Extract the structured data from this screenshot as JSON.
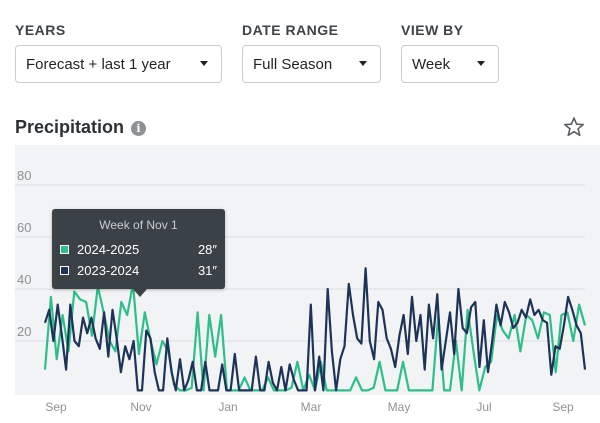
{
  "filters": {
    "years": {
      "label": "YEARS",
      "value": "Forecast + last 1 year"
    },
    "date_range": {
      "label": "DATE RANGE",
      "value": "Full Season"
    },
    "view_by": {
      "label": "VIEW BY",
      "value": "Week"
    }
  },
  "section": {
    "title": "Precipitation",
    "info_icon": "info-icon",
    "favorite_icon": "star-outline-icon"
  },
  "tooltip": {
    "title": "Week of Nov 1",
    "rows": [
      {
        "name": "2024-2025",
        "value": "28″",
        "color": "#2dbe8b"
      },
      {
        "name": "2023-2024",
        "value": "31″",
        "color": "#1e3358"
      }
    ]
  },
  "chart_data": {
    "type": "line",
    "x_ticks": [
      "Sep",
      "Nov",
      "Jan",
      "Mar",
      "May",
      "Jul",
      "Sep"
    ],
    "y_ticks": [
      20,
      40,
      60,
      80
    ],
    "ylim": [
      0,
      85
    ],
    "grid": true,
    "series": [
      {
        "name": "2024-2025",
        "color": "#2dbe8b",
        "values": [
          9,
          37,
          13,
          30,
          16,
          39,
          36,
          35,
          22,
          41,
          31,
          20,
          16,
          35,
          30,
          42,
          15,
          31,
          20,
          11,
          20,
          16,
          3,
          1,
          1,
          2,
          31,
          1,
          30,
          14,
          30,
          1,
          1,
          1,
          6,
          1,
          1,
          1,
          6,
          1,
          1,
          1,
          2,
          12,
          1,
          7,
          1,
          12,
          1,
          1,
          1,
          1,
          1,
          6,
          1,
          1,
          2,
          12,
          1,
          1,
          1,
          12,
          1,
          1,
          1,
          1,
          1,
          30,
          1,
          1,
          20,
          1,
          32,
          16,
          1,
          10,
          12,
          30,
          24,
          21,
          30,
          16,
          30,
          28,
          21,
          31,
          30,
          8,
          30,
          31,
          20,
          34,
          26
        ]
      },
      {
        "name": "2023-2024",
        "color": "#1e3358",
        "values": [
          27,
          32,
          20,
          34,
          22,
          9,
          34,
          20,
          18,
          29,
          23,
          29,
          21,
          17,
          31,
          14,
          32,
          21,
          8,
          18,
          13,
          20,
          1,
          1,
          24,
          21,
          8,
          1,
          1,
          21,
          8,
          1,
          13,
          1,
          5,
          12,
          1,
          1,
          12,
          1,
          1,
          1,
          11,
          1,
          1,
          15,
          1,
          1,
          1,
          1,
          14,
          1,
          1,
          12,
          4,
          1,
          10,
          1,
          11,
          5,
          1,
          1,
          1,
          34,
          1,
          14,
          1,
          40,
          16,
          1,
          13,
          18,
          42,
          30,
          21,
          19,
          48,
          20,
          13,
          35,
          32,
          21,
          17,
          10,
          22,
          30,
          15,
          37,
          20,
          30,
          9,
          34,
          21,
          38,
          9,
          20,
          31,
          15,
          40,
          25,
          23,
          33,
          35,
          10,
          28,
          8,
          20,
          34,
          26,
          35,
          31,
          25,
          27,
          32,
          29,
          36,
          30,
          32,
          28,
          27,
          7,
          18,
          17,
          26,
          37,
          32,
          26,
          23,
          9
        ]
      }
    ]
  }
}
